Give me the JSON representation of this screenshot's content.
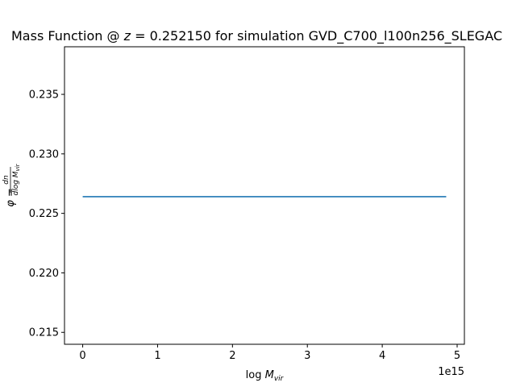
{
  "chart_data": {
    "type": "line",
    "title": "Mass Function @ z = 0.252150 for simulation GVD_C700_l100n256_SLEGAC",
    "xlabel": "log M_vir",
    "ylabel": "φ = dn / dlog M_vir",
    "x_scale_label": "1e15",
    "xlim": [
      -0.243,
      5.097
    ],
    "ylim": [
      0.214,
      0.239
    ],
    "x_ticks": [
      0,
      1,
      2,
      3,
      4,
      5
    ],
    "x_tick_labels": [
      "0",
      "1",
      "2",
      "3",
      "4",
      "5"
    ],
    "y_ticks": [
      0.215,
      0.22,
      0.225,
      0.23,
      0.235
    ],
    "y_tick_labels": [
      "0.215",
      "0.220",
      "0.225",
      "0.230",
      "0.235"
    ],
    "grid": false,
    "series": [
      {
        "color": "#1f77b4",
        "x": [
          0.0,
          4.854
        ],
        "y": [
          0.2264,
          0.2264
        ]
      }
    ]
  }
}
